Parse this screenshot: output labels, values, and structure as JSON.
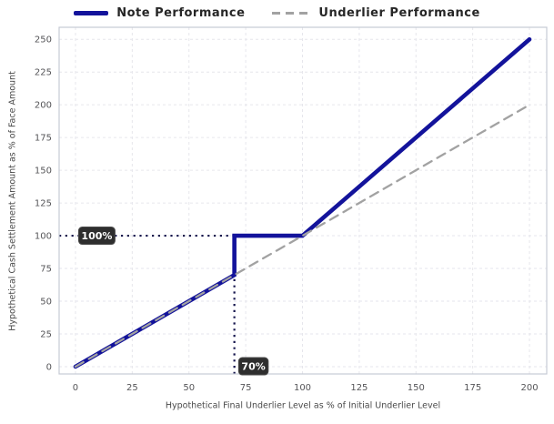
{
  "chart_data": {
    "type": "line",
    "title": "",
    "xlabel": "Hypothetical Final Underlier Level as % of Initial Underlier Level",
    "ylabel": "Hypothetical Cash Settlement Amount as % of Face Amount",
    "xticks": [
      0,
      25,
      50,
      75,
      100,
      125,
      150,
      175,
      200
    ],
    "yticks": [
      0,
      25,
      50,
      75,
      100,
      125,
      150,
      175,
      200,
      225,
      250
    ],
    "xlim": [
      -7.2,
      207.6
    ],
    "ylim": [
      -5.6,
      259.2
    ],
    "grid": true,
    "legend_position": "top-center",
    "series": [
      {
        "name": "Note Performance",
        "style": "solid",
        "color": "#13139b",
        "width": 4.6,
        "points": [
          [
            0,
            0
          ],
          [
            70,
            70
          ],
          [
            70,
            100
          ],
          [
            100,
            100
          ],
          [
            200,
            250
          ]
        ]
      },
      {
        "name": "Underlier Performance",
        "style": "dashed",
        "color": "#a2a2a2",
        "width": 2.3,
        "points": [
          [
            0,
            0
          ],
          [
            200,
            200
          ]
        ]
      }
    ],
    "guides": [
      {
        "orientation": "horizontal",
        "y": 100,
        "from_x": -7.2,
        "to_x": 70
      },
      {
        "orientation": "vertical",
        "x": 70,
        "from_y": -5.6,
        "to_y": 70
      }
    ],
    "annotations": [
      {
        "label": "100%",
        "x": 9.4,
        "y": 100
      },
      {
        "label": "70%",
        "x": 78.4,
        "y": 0.3
      }
    ],
    "colors": {
      "note": "#13139b",
      "underlier": "#a2a2a2",
      "guide": "#15154d",
      "grid": "#e6e6ec",
      "border": "#c6cad4",
      "tick_text": "#555558",
      "axis_text": "#4a4a4a",
      "legend_text": "#262626",
      "badge_bg": "#2e2e2e",
      "badge_border": "#4a4a4a",
      "badge_text": "#ffffff"
    }
  }
}
